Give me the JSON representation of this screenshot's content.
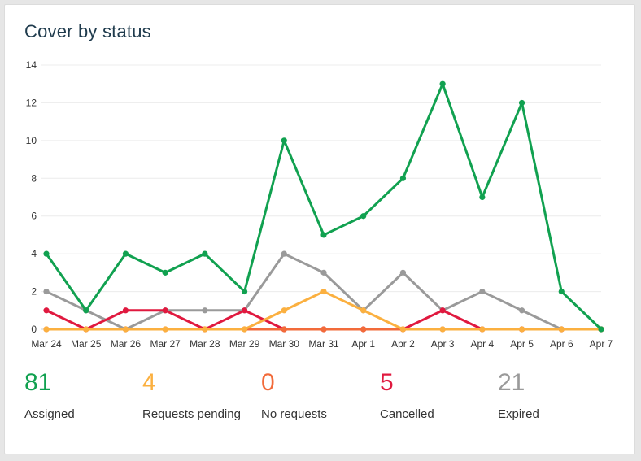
{
  "card": {
    "title": "Cover by status"
  },
  "chart_data": {
    "type": "line",
    "title": "Cover by status",
    "xlabel": "",
    "ylabel": "",
    "categories": [
      "Mar 24",
      "Mar 25",
      "Mar 26",
      "Mar 27",
      "Mar 28",
      "Mar 29",
      "Mar 30",
      "Mar 31",
      "Apr 1",
      "Apr 2",
      "Apr 3",
      "Apr 4",
      "Apr 5",
      "Apr 6",
      "Apr 7"
    ],
    "ylim": [
      0,
      14
    ],
    "yticks": [
      0,
      2,
      4,
      6,
      8,
      10,
      12,
      14
    ],
    "grid": true,
    "series": [
      {
        "name": "Expired",
        "color": "#9a9a9a",
        "values": [
          2,
          1,
          0,
          1,
          1,
          1,
          4,
          3,
          1,
          3,
          1,
          2,
          1,
          0,
          0
        ]
      },
      {
        "name": "Cancelled",
        "color": "#e0193f",
        "values": [
          1,
          0,
          1,
          1,
          0,
          1,
          0,
          0,
          0,
          0,
          1,
          0,
          0,
          0,
          0
        ]
      },
      {
        "name": "No requests",
        "color": "#f26b3a",
        "values": [
          0,
          0,
          0,
          0,
          0,
          0,
          0,
          0,
          0,
          0,
          0,
          0,
          0,
          0,
          0
        ]
      },
      {
        "name": "Requests pending",
        "color": "#fbb040",
        "values": [
          0,
          0,
          0,
          0,
          0,
          0,
          1,
          2,
          1,
          0,
          0,
          0,
          0,
          0,
          0
        ]
      },
      {
        "name": "Assigned",
        "color": "#11a150",
        "values": [
          4,
          1,
          4,
          3,
          4,
          2,
          10,
          5,
          6,
          8,
          13,
          7,
          12,
          2,
          0
        ]
      }
    ]
  },
  "stats": [
    {
      "value": "81",
      "label": "Assigned",
      "color": "#11a150"
    },
    {
      "value": "4",
      "label": "Requests pending",
      "color": "#fbb040"
    },
    {
      "value": "0",
      "label": "No requests",
      "color": "#f26b3a"
    },
    {
      "value": "5",
      "label": "Cancelled",
      "color": "#e0193f"
    },
    {
      "value": "21",
      "label": "Expired",
      "color": "#9a9a9a"
    }
  ]
}
